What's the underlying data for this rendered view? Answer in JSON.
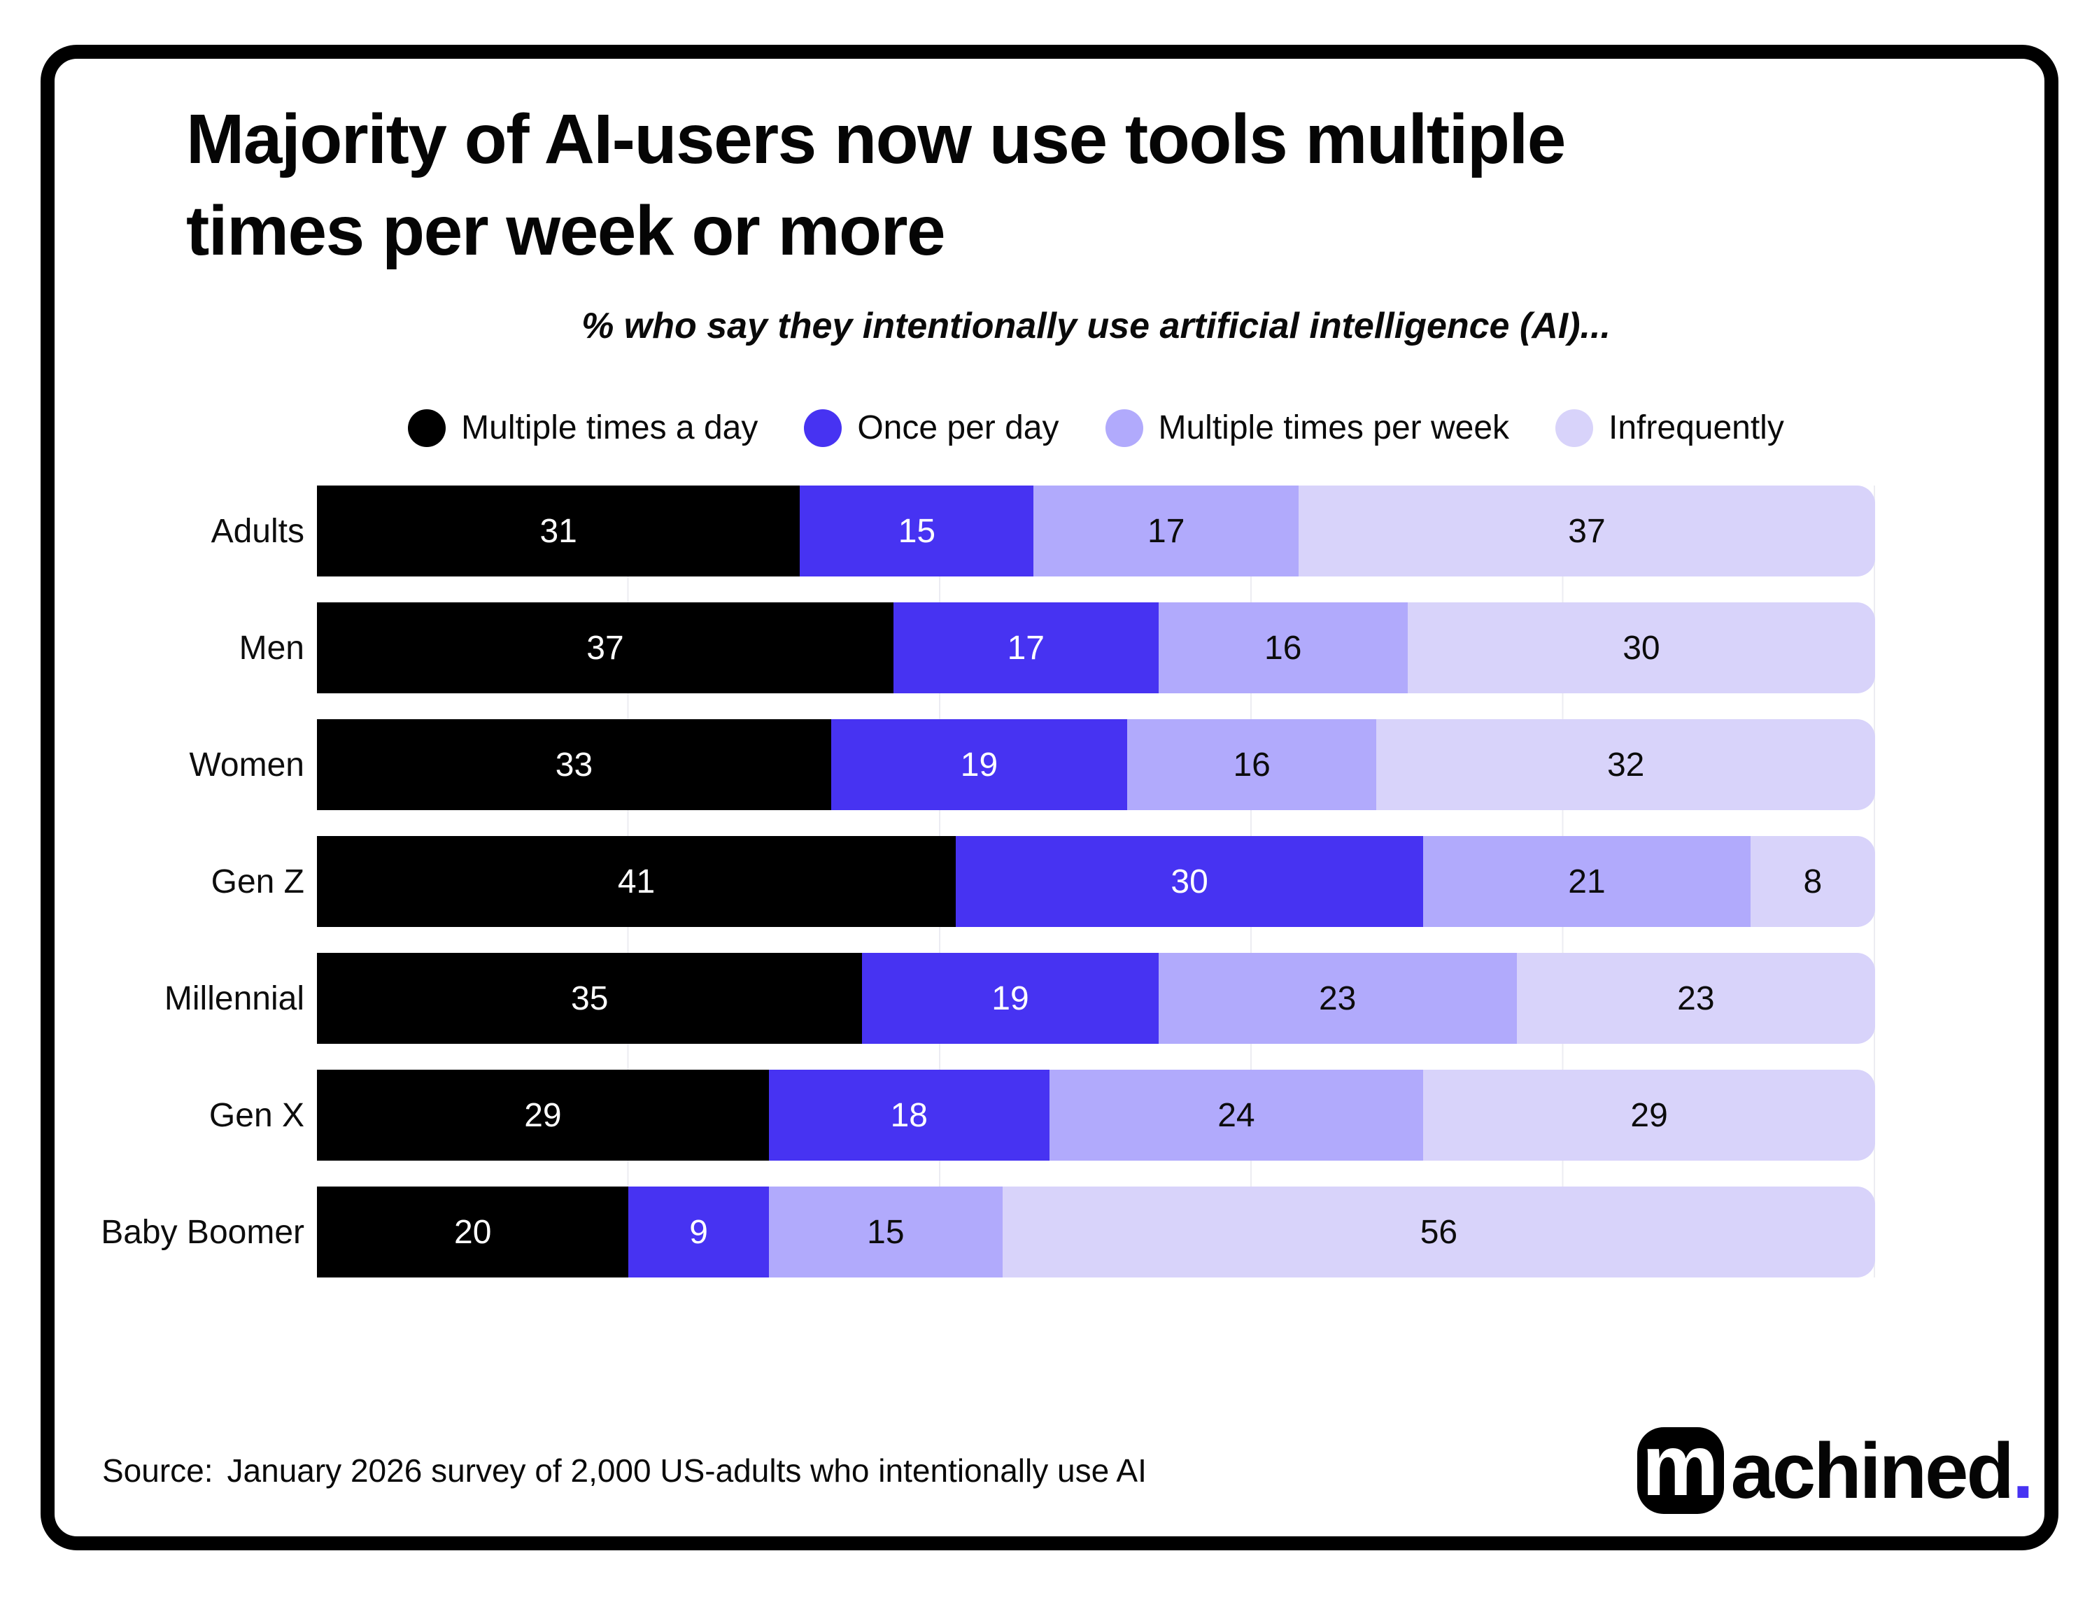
{
  "header": {
    "title_lines": [
      "Majority of AI-users now use tools multiple",
      "times per week or more"
    ],
    "subtitle": "% who say they intentionally use artificial intelligence (AI)..."
  },
  "chart_data": {
    "type": "bar",
    "orientation": "horizontal",
    "stacked": true,
    "unit": "%",
    "xlim": [
      0,
      100
    ],
    "gridlines_percent": [
      20,
      40,
      60,
      80,
      100
    ],
    "legend_position": "top",
    "categories": [
      "Adults",
      "Men",
      "Women",
      "Gen Z",
      "Millennial",
      "Gen X",
      "Baby Boomer"
    ],
    "series": [
      {
        "name": "Multiple times a day",
        "color": "#000000",
        "label_color": "#ffffff",
        "values": [
          31,
          37,
          33,
          41,
          35,
          29,
          20
        ]
      },
      {
        "name": "Once per day",
        "color": "#4733f2",
        "label_color": "#ffffff",
        "values": [
          15,
          17,
          19,
          30,
          19,
          18,
          9
        ]
      },
      {
        "name": "Multiple times per week",
        "color": "#b1aafc",
        "label_color": "#0c0c0c",
        "values": [
          17,
          16,
          16,
          21,
          23,
          24,
          15
        ]
      },
      {
        "name": "Infrequently",
        "color": "#d8d3fa",
        "label_color": "#0c0c0c",
        "values": [
          37,
          30,
          32,
          8,
          23,
          29,
          56
        ]
      }
    ]
  },
  "footer": {
    "source_label": "Source:",
    "source_text": "January 2026 survey of 2,000 US-adults who intentionally use AI",
    "logo": {
      "mark_letter": "m",
      "wordmark": "achined",
      "period": ".",
      "period_color": "#4733f2"
    }
  }
}
